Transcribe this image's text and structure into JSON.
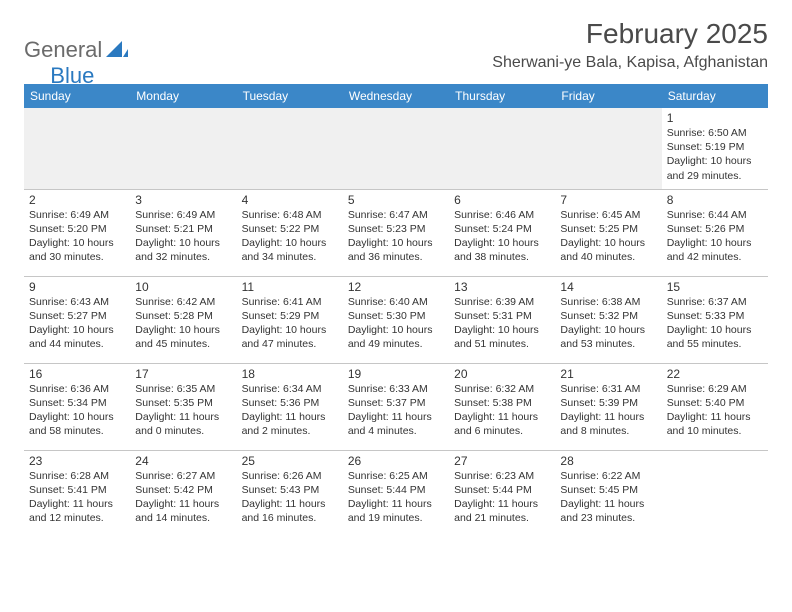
{
  "logo": {
    "text1": "General",
    "text2": "Blue"
  },
  "title": "February 2025",
  "location": "Sherwani-ye Bala, Kapisa, Afghanistan",
  "daynames": [
    "Sunday",
    "Monday",
    "Tuesday",
    "Wednesday",
    "Thursday",
    "Friday",
    "Saturday"
  ],
  "colors": {
    "header_bar": "#3b87c8",
    "logo_gray": "#6b6b6b",
    "logo_blue": "#2a79c0",
    "text": "#333333",
    "empty_bg": "#f0f0f0",
    "rule": "#c6c6c6"
  },
  "weeks": [
    [
      null,
      null,
      null,
      null,
      null,
      null,
      {
        "day": "1",
        "sunrise": "Sunrise: 6:50 AM",
        "sunset": "Sunset: 5:19 PM",
        "daylight1": "Daylight: 10 hours",
        "daylight2": "and 29 minutes."
      }
    ],
    [
      {
        "day": "2",
        "sunrise": "Sunrise: 6:49 AM",
        "sunset": "Sunset: 5:20 PM",
        "daylight1": "Daylight: 10 hours",
        "daylight2": "and 30 minutes."
      },
      {
        "day": "3",
        "sunrise": "Sunrise: 6:49 AM",
        "sunset": "Sunset: 5:21 PM",
        "daylight1": "Daylight: 10 hours",
        "daylight2": "and 32 minutes."
      },
      {
        "day": "4",
        "sunrise": "Sunrise: 6:48 AM",
        "sunset": "Sunset: 5:22 PM",
        "daylight1": "Daylight: 10 hours",
        "daylight2": "and 34 minutes."
      },
      {
        "day": "5",
        "sunrise": "Sunrise: 6:47 AM",
        "sunset": "Sunset: 5:23 PM",
        "daylight1": "Daylight: 10 hours",
        "daylight2": "and 36 minutes."
      },
      {
        "day": "6",
        "sunrise": "Sunrise: 6:46 AM",
        "sunset": "Sunset: 5:24 PM",
        "daylight1": "Daylight: 10 hours",
        "daylight2": "and 38 minutes."
      },
      {
        "day": "7",
        "sunrise": "Sunrise: 6:45 AM",
        "sunset": "Sunset: 5:25 PM",
        "daylight1": "Daylight: 10 hours",
        "daylight2": "and 40 minutes."
      },
      {
        "day": "8",
        "sunrise": "Sunrise: 6:44 AM",
        "sunset": "Sunset: 5:26 PM",
        "daylight1": "Daylight: 10 hours",
        "daylight2": "and 42 minutes."
      }
    ],
    [
      {
        "day": "9",
        "sunrise": "Sunrise: 6:43 AM",
        "sunset": "Sunset: 5:27 PM",
        "daylight1": "Daylight: 10 hours",
        "daylight2": "and 44 minutes."
      },
      {
        "day": "10",
        "sunrise": "Sunrise: 6:42 AM",
        "sunset": "Sunset: 5:28 PM",
        "daylight1": "Daylight: 10 hours",
        "daylight2": "and 45 minutes."
      },
      {
        "day": "11",
        "sunrise": "Sunrise: 6:41 AM",
        "sunset": "Sunset: 5:29 PM",
        "daylight1": "Daylight: 10 hours",
        "daylight2": "and 47 minutes."
      },
      {
        "day": "12",
        "sunrise": "Sunrise: 6:40 AM",
        "sunset": "Sunset: 5:30 PM",
        "daylight1": "Daylight: 10 hours",
        "daylight2": "and 49 minutes."
      },
      {
        "day": "13",
        "sunrise": "Sunrise: 6:39 AM",
        "sunset": "Sunset: 5:31 PM",
        "daylight1": "Daylight: 10 hours",
        "daylight2": "and 51 minutes."
      },
      {
        "day": "14",
        "sunrise": "Sunrise: 6:38 AM",
        "sunset": "Sunset: 5:32 PM",
        "daylight1": "Daylight: 10 hours",
        "daylight2": "and 53 minutes."
      },
      {
        "day": "15",
        "sunrise": "Sunrise: 6:37 AM",
        "sunset": "Sunset: 5:33 PM",
        "daylight1": "Daylight: 10 hours",
        "daylight2": "and 55 minutes."
      }
    ],
    [
      {
        "day": "16",
        "sunrise": "Sunrise: 6:36 AM",
        "sunset": "Sunset: 5:34 PM",
        "daylight1": "Daylight: 10 hours",
        "daylight2": "and 58 minutes."
      },
      {
        "day": "17",
        "sunrise": "Sunrise: 6:35 AM",
        "sunset": "Sunset: 5:35 PM",
        "daylight1": "Daylight: 11 hours",
        "daylight2": "and 0 minutes."
      },
      {
        "day": "18",
        "sunrise": "Sunrise: 6:34 AM",
        "sunset": "Sunset: 5:36 PM",
        "daylight1": "Daylight: 11 hours",
        "daylight2": "and 2 minutes."
      },
      {
        "day": "19",
        "sunrise": "Sunrise: 6:33 AM",
        "sunset": "Sunset: 5:37 PM",
        "daylight1": "Daylight: 11 hours",
        "daylight2": "and 4 minutes."
      },
      {
        "day": "20",
        "sunrise": "Sunrise: 6:32 AM",
        "sunset": "Sunset: 5:38 PM",
        "daylight1": "Daylight: 11 hours",
        "daylight2": "and 6 minutes."
      },
      {
        "day": "21",
        "sunrise": "Sunrise: 6:31 AM",
        "sunset": "Sunset: 5:39 PM",
        "daylight1": "Daylight: 11 hours",
        "daylight2": "and 8 minutes."
      },
      {
        "day": "22",
        "sunrise": "Sunrise: 6:29 AM",
        "sunset": "Sunset: 5:40 PM",
        "daylight1": "Daylight: 11 hours",
        "daylight2": "and 10 minutes."
      }
    ],
    [
      {
        "day": "23",
        "sunrise": "Sunrise: 6:28 AM",
        "sunset": "Sunset: 5:41 PM",
        "daylight1": "Daylight: 11 hours",
        "daylight2": "and 12 minutes."
      },
      {
        "day": "24",
        "sunrise": "Sunrise: 6:27 AM",
        "sunset": "Sunset: 5:42 PM",
        "daylight1": "Daylight: 11 hours",
        "daylight2": "and 14 minutes."
      },
      {
        "day": "25",
        "sunrise": "Sunrise: 6:26 AM",
        "sunset": "Sunset: 5:43 PM",
        "daylight1": "Daylight: 11 hours",
        "daylight2": "and 16 minutes."
      },
      {
        "day": "26",
        "sunrise": "Sunrise: 6:25 AM",
        "sunset": "Sunset: 5:44 PM",
        "daylight1": "Daylight: 11 hours",
        "daylight2": "and 19 minutes."
      },
      {
        "day": "27",
        "sunrise": "Sunrise: 6:23 AM",
        "sunset": "Sunset: 5:44 PM",
        "daylight1": "Daylight: 11 hours",
        "daylight2": "and 21 minutes."
      },
      {
        "day": "28",
        "sunrise": "Sunrise: 6:22 AM",
        "sunset": "Sunset: 5:45 PM",
        "daylight1": "Daylight: 11 hours",
        "daylight2": "and 23 minutes."
      },
      null
    ]
  ]
}
